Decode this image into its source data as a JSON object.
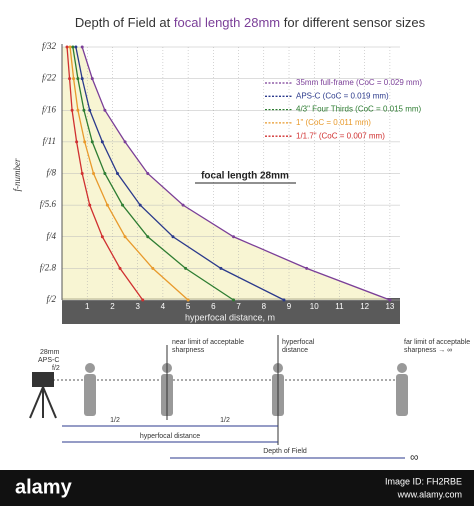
{
  "chart_data": {
    "type": "line",
    "title_parts": [
      "Depth of Field at ",
      "focal length 28mm",
      " for different sensor sizes"
    ],
    "annotation": "focal length 28mm",
    "y_label": "f-number",
    "x_label": "hyperfocal distance, m",
    "categories": [
      "f/2",
      "f/2.8",
      "f/4",
      "f/5.6",
      "f/8",
      "f/11",
      "f/16",
      "f/22",
      "f/32"
    ],
    "xlim": [
      0,
      13.4
    ],
    "xticks": [
      1,
      2,
      3,
      4,
      5,
      6,
      7,
      8,
      9,
      10,
      11,
      12,
      13
    ],
    "grid": true,
    "series": [
      {
        "name": "35mm full-frame (CoC = 0.029 mm)",
        "color": "#7b3f98",
        "values": [
          13,
          9.7,
          6.8,
          4.8,
          3.4,
          2.5,
          1.7,
          1.2,
          0.8
        ]
      },
      {
        "name": "APS-C (CoC = 0.019 mm)",
        "color": "#2b3a8c",
        "values": [
          8.8,
          6.3,
          4.4,
          3.1,
          2.2,
          1.6,
          1.1,
          0.8,
          0.55
        ]
      },
      {
        "name": "4/3\" Four Thirds (CoC = 0.015 mm)",
        "color": "#2e7d32",
        "values": [
          6.8,
          4.9,
          3.4,
          2.4,
          1.7,
          1.2,
          0.87,
          0.63,
          0.43
        ]
      },
      {
        "name": "1\" (CoC = 0.011 mm)",
        "color": "#e89a2c",
        "values": [
          5,
          3.6,
          2.5,
          1.8,
          1.25,
          0.9,
          0.63,
          0.46,
          0.32
        ]
      },
      {
        "name": "1/1.7\" (CoC = 0.007 mm)",
        "color": "#d03030",
        "values": [
          3.2,
          2.3,
          1.6,
          1.1,
          0.8,
          0.58,
          0.4,
          0.3,
          0.2
        ]
      }
    ]
  },
  "diagram": {
    "camera": [
      "28mm",
      "APS-C",
      "f/2"
    ],
    "near_limit": [
      "near limit of acceptable",
      "sharpness"
    ],
    "hyperfocal": [
      "hyperfocal",
      "distance"
    ],
    "far_limit": [
      "far limit of acceptable",
      "sharpness → ∞"
    ],
    "half_left": "1/2",
    "half_right": "1/2",
    "hyperfocal_distance": "hyperfocal distance",
    "depth_of_field": "Depth of Field",
    "infinity": "∞"
  },
  "footer": {
    "brand": "alamy",
    "image_id": "Image ID: FH2RBE",
    "site": "www.alamy.com"
  }
}
